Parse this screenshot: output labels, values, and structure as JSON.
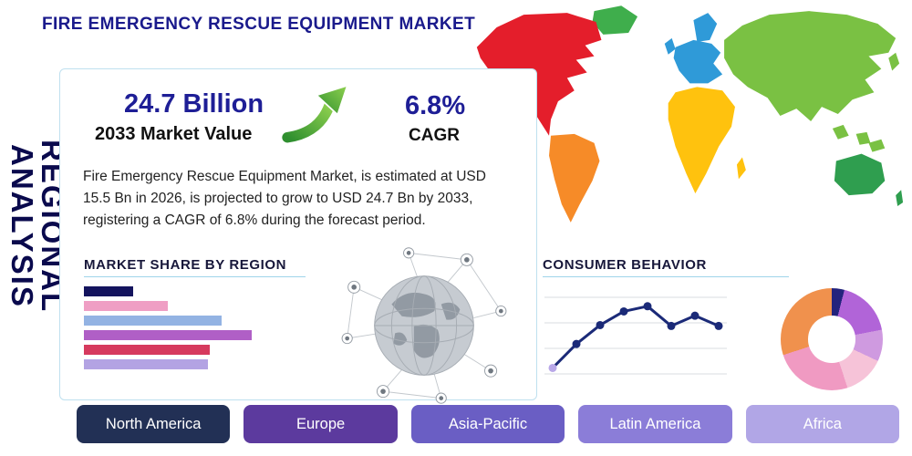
{
  "header": {
    "title": "FIRE EMERGENCY RESCUE EQUIPMENT MARKET",
    "side_label": "REGIONAL ANALYSIS"
  },
  "stats": {
    "market_value": "24.7 Billion",
    "market_value_caption": "2033 Market Value",
    "cagr_value": "6.8%",
    "cagr_caption": "CAGR",
    "description": "Fire Emergency Rescue Equipment Market, is estimated at USD 15.5 Bn in 2026, is projected to grow to USD 24.7 Bn by 2033, registering a CAGR of 6.8% during the forecast period."
  },
  "sections": {
    "market_share": "MARKET SHARE BY REGION",
    "consumer_behavior": "CONSUMER BEHAVIOR"
  },
  "accent_colors": {
    "title_navy": "#1a1a8c",
    "heading_underline": "#9fd4ea",
    "arrow_green": "#6cbf3c"
  },
  "map_colors": {
    "north_america": "#e41e2b",
    "greenland": "#3fae4c",
    "south_america": "#f68b28",
    "europe": "#2f9ad8",
    "africa": "#ffc20e",
    "asia": "#7ac143",
    "australia": "#2f9e4f"
  },
  "region_buttons": [
    {
      "label": "North America",
      "color": "#223055"
    },
    {
      "label": "Europe",
      "color": "#5c3a9e"
    },
    {
      "label": "Asia-Pacific",
      "color": "#6a5ec4"
    },
    {
      "label": "Latin America",
      "color": "#8b7dd8"
    },
    {
      "label": "Africa",
      "color": "#b1a6e6"
    }
  ],
  "chart_data": [
    {
      "type": "bar",
      "title": "MARKET SHARE BY REGION",
      "orientation": "horizontal",
      "values": [
        21,
        36,
        59,
        72,
        54,
        53
      ],
      "colors": [
        "#14145e",
        "#ef9ec4",
        "#93b3e3",
        "#b05fc6",
        "#d63a5e",
        "#b3a3e3"
      ],
      "xlim": [
        0,
        100
      ],
      "grid": false,
      "legend": "none"
    },
    {
      "type": "line",
      "title": "CONSUMER BEHAVIOR",
      "x": [
        1,
        2,
        3,
        4,
        5,
        6,
        7,
        8
      ],
      "values": [
        8,
        36,
        58,
        74,
        80,
        57,
        69,
        57
      ],
      "ylim": [
        0,
        100
      ],
      "color": "#1b2a78",
      "start_marker_color": "#b9a8e8",
      "grid": true,
      "legend": "none"
    },
    {
      "type": "pie",
      "title": "",
      "slices": [
        {
          "color": "#23237d",
          "value": 4
        },
        {
          "color": "#b164d8",
          "value": 18
        },
        {
          "color": "#cf9ae0",
          "value": 10
        },
        {
          "color": "#f6c3d8",
          "value": 13
        },
        {
          "color": "#f09ac2",
          "value": 25
        },
        {
          "color": "#f0914d",
          "value": 30
        }
      ],
      "donut": true,
      "legend": "none"
    }
  ]
}
